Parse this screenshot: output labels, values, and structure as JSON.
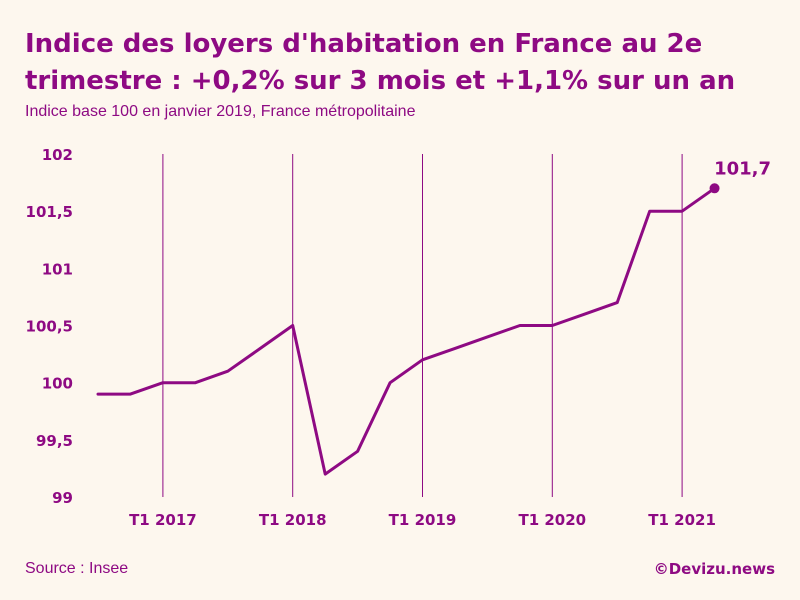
{
  "colors": {
    "background": "#fdf7ee",
    "accent": "#8e0a83"
  },
  "footer": {
    "source": "Source : Insee",
    "credit": "©Devizu.news"
  },
  "chart_data": {
    "type": "line",
    "title": "Indice des loyers d'habitation en France au 2e trimestre : +0,2% sur 3 mois et +1,1% sur un an",
    "subtitle": "Indice base 100 en janvier 2019, France métropolitaine",
    "xlabel": "",
    "ylabel": "",
    "ylim": [
      99,
      102
    ],
    "y_ticks": [
      {
        "value": 102,
        "label": "102"
      },
      {
        "value": 101.5,
        "label": "101,5"
      },
      {
        "value": 101,
        "label": "101"
      },
      {
        "value": 100.5,
        "label": "100,5"
      },
      {
        "value": 100,
        "label": "100"
      },
      {
        "value": 99.5,
        "label": "99,5"
      },
      {
        "value": 99,
        "label": "99"
      }
    ],
    "x_ticks": [
      {
        "quarter_index": 2,
        "label": "T1 2017"
      },
      {
        "quarter_index": 6,
        "label": "T1 2018"
      },
      {
        "quarter_index": 10,
        "label": "T1 2019"
      },
      {
        "quarter_index": 14,
        "label": "T1 2020"
      },
      {
        "quarter_index": 18,
        "label": "T1 2021"
      }
    ],
    "grid": {
      "x": true,
      "y": false
    },
    "series": [
      {
        "values": [
          99.9,
          99.9,
          100.0,
          100.0,
          100.1,
          100.3,
          100.5,
          99.2,
          99.4,
          100.0,
          100.2,
          100.3,
          100.4,
          100.5,
          100.5,
          100.6,
          100.7,
          101.5,
          101.5,
          101.7
        ]
      }
    ],
    "annotation": {
      "quarter_index": 19,
      "label": "101,7"
    }
  }
}
